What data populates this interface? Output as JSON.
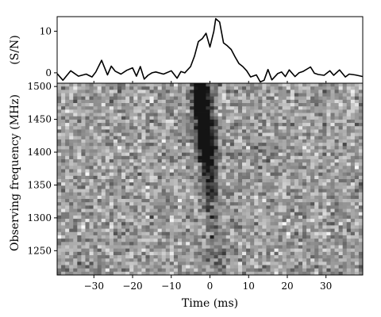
{
  "chart_data": [
    {
      "type": "line",
      "panel": "top",
      "title": "",
      "xlabel": "",
      "ylabel": "(S/N)",
      "xlim": [
        -39.5,
        39.5
      ],
      "ylim": [
        -2.5,
        13.5
      ],
      "y_ticks": [
        0,
        10
      ],
      "grid": false,
      "legend": "none",
      "series": [
        {
          "x": [
            -39.5,
            -38,
            -36,
            -34,
            -32,
            -30.5,
            -29.5,
            -28,
            -26.5,
            -25.5,
            -24.5,
            -23,
            -21.5,
            -20,
            -19,
            -18,
            -17,
            -16,
            -15,
            -14,
            -12,
            -10,
            -8.5,
            -7.5,
            -6.5,
            -5,
            -4,
            -3,
            -2,
            -1,
            0,
            1,
            1.5,
            2.5,
            3.5,
            4.5,
            5.5,
            6.5,
            7.5,
            8.5,
            9.5,
            10.5,
            12,
            13,
            14,
            15,
            16,
            17.5,
            18.5,
            19.5,
            20.5,
            22,
            23,
            24,
            26,
            27,
            28,
            29.5,
            31,
            32,
            33.5,
            35,
            36,
            37.5,
            38.5,
            39.5
          ],
          "y": [
            -0.2,
            -1.8,
            0.5,
            -0.8,
            -0.3,
            -1.0,
            0.2,
            3.0,
            -0.5,
            1.6,
            0.4,
            -0.3,
            0.6,
            1.2,
            -0.8,
            1.5,
            -1.5,
            -0.6,
            0.0,
            0.2,
            -0.3,
            0.5,
            -1.3,
            0.3,
            0.0,
            1.5,
            4.0,
            7.5,
            8.2,
            9.5,
            6.2,
            10.0,
            13.0,
            12.2,
            7.2,
            6.5,
            5.6,
            3.8,
            2.2,
            1.5,
            0.5,
            -1.0,
            -0.5,
            -2.2,
            -1.8,
            0.8,
            -1.7,
            -0.2,
            0.2,
            -0.9,
            0.7,
            -0.9,
            0.0,
            0.3,
            1.4,
            -0.1,
            -0.4,
            -0.6,
            0.5,
            -0.6,
            0.7,
            -1.0,
            -0.3,
            -0.5,
            -0.7,
            -0.9
          ]
        }
      ]
    },
    {
      "type": "heatmap",
      "panel": "bottom",
      "title": "",
      "xlabel": "Time (ms)",
      "ylabel": "Observing frequency (MHz)",
      "xlim": [
        -39.5,
        39.5
      ],
      "ylim": [
        1213,
        1505
      ],
      "x_ticks": [
        -30,
        -20,
        -10,
        0,
        10,
        20,
        30
      ],
      "y_ticks": [
        1250,
        1300,
        1350,
        1400,
        1450,
        1500
      ],
      "colormap": "grayscale",
      "grid": false,
      "legend": "none",
      "pulse": {
        "description_in_data_units": "dispersed dark sweep",
        "t_at_1505_MHz": -2.5,
        "t_at_1213_MHz": 2.0,
        "f_peak_MHz": 1450,
        "t_peak_ms": 1.5
      }
    }
  ]
}
